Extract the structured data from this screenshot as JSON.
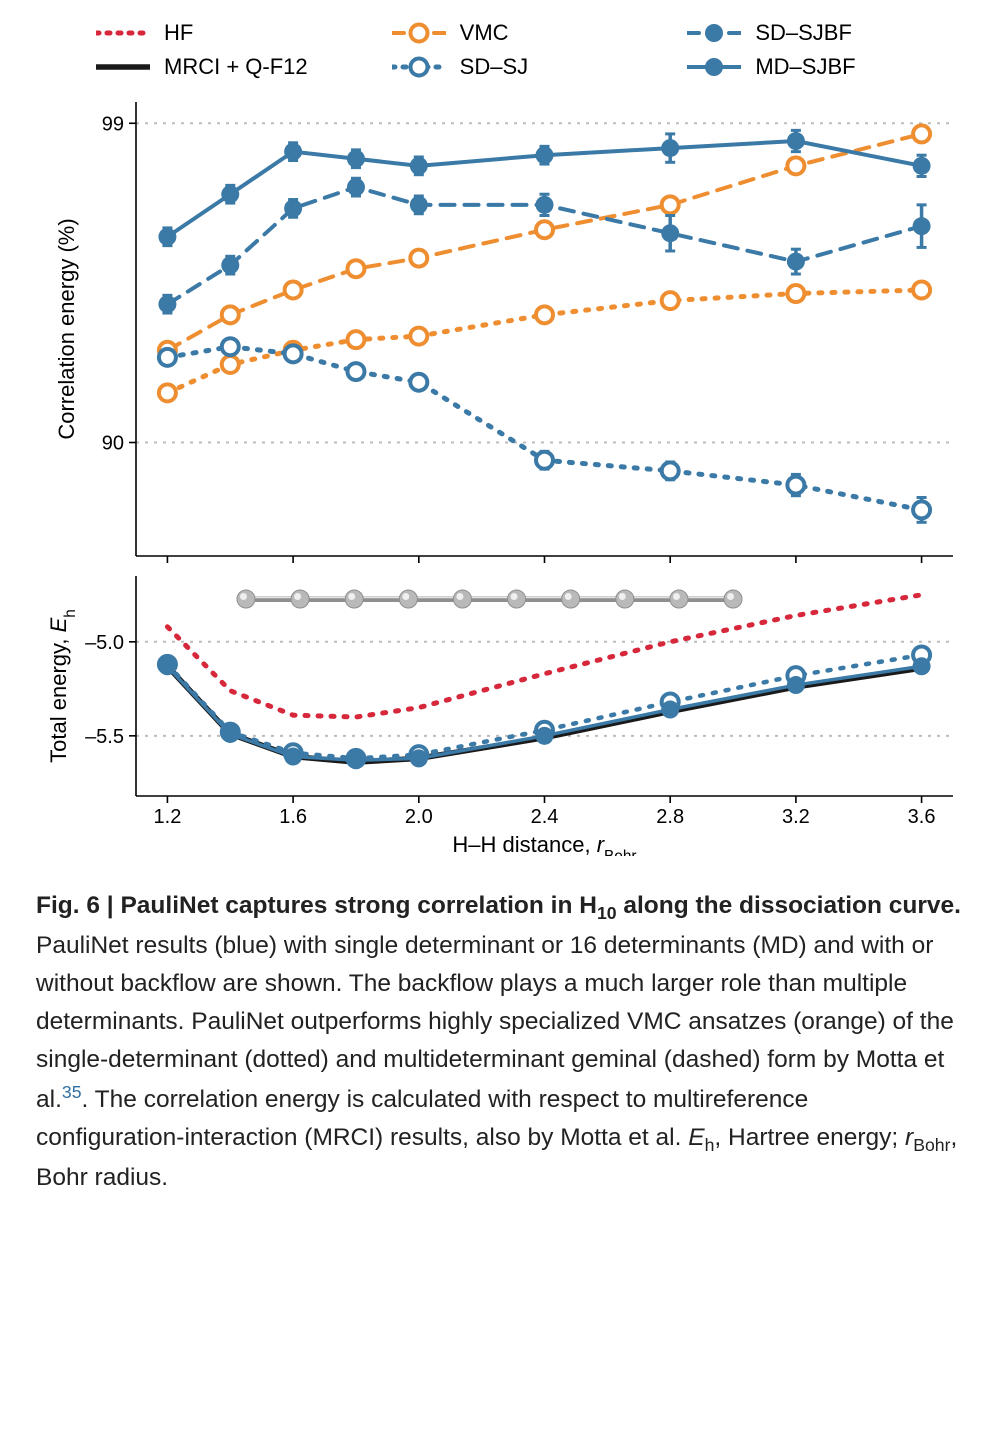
{
  "colors": {
    "blue": "#3b79a6",
    "orange": "#ee8e31",
    "red": "#d6273b",
    "black": "#1a1a1a",
    "axis": "#000000",
    "grid": "#bcbcbc",
    "tick_text": "#000000",
    "bg": "#ffffff",
    "molecule_gray": "#b9b9b9",
    "molecule_dark": "#8f8f8f"
  },
  "typography": {
    "tick_fontsize": 20,
    "axis_label_fontsize": 22,
    "legend_fontsize": 22,
    "caption_fontsize": 24.5
  },
  "legend": [
    {
      "key": "HF",
      "label": "HF",
      "color": "#d6273b",
      "style": "dotted",
      "marker": "none",
      "lw": 5
    },
    {
      "key": "VMC",
      "label": "VMC",
      "color": "#ee8e31",
      "style": "dashed",
      "marker": "open-circle",
      "lw": 4
    },
    {
      "key": "SD-SJBF",
      "label": "SD–SJBF",
      "color": "#3b79a6",
      "style": "dashed",
      "marker": "solid-circle",
      "lw": 4
    },
    {
      "key": "MRCI",
      "label": "MRCI + Q-F12",
      "color": "#1a1a1a",
      "style": "solid",
      "marker": "none",
      "lw": 5.5
    },
    {
      "key": "SD-SJ",
      "label": "SD–SJ",
      "color": "#3b79a6",
      "style": "dotted",
      "marker": "open-circle",
      "lw": 5
    },
    {
      "key": "MD-SJBF",
      "label": "MD–SJBF",
      "color": "#3b79a6",
      "style": "solid",
      "marker": "solid-circle",
      "lw": 4
    }
  ],
  "x": {
    "ticks": [
      1.2,
      1.6,
      2.0,
      2.4,
      2.8,
      3.2,
      3.6
    ],
    "data": [
      1.2,
      1.4,
      1.6,
      1.8,
      2.0,
      2.4,
      2.8,
      3.2,
      3.6
    ],
    "min": 1.1,
    "max": 3.7,
    "label": "H–H distance, r",
    "label_sub": "Bohr"
  },
  "top": {
    "ylabel": "Correlation energy (%)",
    "ylim": [
      86.8,
      99.6
    ],
    "yticks": [
      90,
      99
    ],
    "series": {
      "VMC_dotted": {
        "color": "#ee8e31",
        "style": "dotted",
        "marker": "open-circle",
        "y": [
          91.4,
          92.2,
          92.6,
          92.9,
          93.0,
          93.6,
          94.0,
          94.2,
          94.3
        ]
      },
      "VMC_dashed": {
        "color": "#ee8e31",
        "style": "dashed",
        "marker": "open-circle",
        "y": [
          92.6,
          93.6,
          94.3,
          94.9,
          95.2,
          96.0,
          96.7,
          97.8,
          98.7
        ]
      },
      "SD_SJ": {
        "color": "#3b79a6",
        "style": "dotted",
        "marker": "open-circle",
        "y": [
          92.4,
          92.7,
          92.5,
          92.0,
          91.7,
          89.5,
          89.2,
          88.8,
          88.1
        ],
        "err": [
          0.2,
          0.2,
          0.2,
          0.2,
          0.2,
          0.25,
          0.25,
          0.3,
          0.35
        ]
      },
      "SD_SJBF": {
        "color": "#3b79a6",
        "style": "dashed",
        "marker": "solid-circle",
        "y": [
          93.9,
          95.0,
          96.6,
          97.2,
          96.7,
          96.7,
          95.9,
          95.1,
          96.1
        ],
        "err": [
          0.25,
          0.25,
          0.25,
          0.25,
          0.25,
          0.3,
          0.5,
          0.35,
          0.6
        ]
      },
      "MD_SJBF": {
        "color": "#3b79a6",
        "style": "solid",
        "marker": "solid-circle",
        "y": [
          95.8,
          97.0,
          98.2,
          98.0,
          97.8,
          98.1,
          98.3,
          98.5,
          97.8
        ],
        "err": [
          0.25,
          0.25,
          0.25,
          0.25,
          0.25,
          0.25,
          0.4,
          0.3,
          0.3
        ]
      }
    }
  },
  "bottom": {
    "ylabel": "Total energy, E",
    "ylabel_sub": "h",
    "ylim": [
      -5.82,
      -4.65
    ],
    "yticks": [
      -5.5,
      -5.0
    ],
    "series": {
      "HF": {
        "color": "#d6273b",
        "style": "dotted",
        "marker": "none",
        "lw": 5,
        "y": [
          -4.92,
          -5.26,
          -5.39,
          -5.4,
          -5.35,
          -5.17,
          -5.0,
          -4.86,
          -4.75
        ]
      },
      "MRCI": {
        "color": "#1a1a1a",
        "style": "solid",
        "marker": "none",
        "lw": 5.5,
        "y": [
          -5.13,
          -5.49,
          -5.61,
          -5.64,
          -5.62,
          -5.51,
          -5.37,
          -5.24,
          -5.14
        ]
      },
      "SD_SJ_b": {
        "color": "#3b79a6",
        "style": "dotted",
        "marker": "open-circle",
        "lw": 4.5,
        "y": [
          -5.12,
          -5.48,
          -5.59,
          -5.62,
          -5.6,
          -5.47,
          -5.32,
          -5.18,
          -5.07
        ]
      },
      "MD_SJBF_b": {
        "color": "#3b79a6",
        "style": "solid",
        "marker": "solid-circle",
        "lw": 3.5,
        "y": [
          -5.13,
          -5.49,
          -5.61,
          -5.63,
          -5.62,
          -5.5,
          -5.36,
          -5.23,
          -5.13
        ]
      }
    }
  },
  "caption": {
    "fignum": "Fig. 6",
    "title_bold": "PauliNet captures strong correlation in H",
    "title_sub": "10",
    "title_bold_tail": " along the dissociation curve.",
    "body1": " PauliNet results (blue) with single determinant or 16 determinants (MD) and with or without backflow are shown. The backflow plays a much larger role than multiple determinants. PauliNet outperforms highly specialized VMC ansatzes (orange) of the single-determinant (dotted) and multideterminant geminal (dashed) form by Motta et al.",
    "ref": "35",
    "body2": ". The correlation energy is calculated with respect to multireference configuration-interaction (MRCI) results, also by Motta et al. ",
    "eh": "E",
    "eh_sub": "h",
    "body3": ", Hartree energy; ",
    "rbohr": "r",
    "rbohr_sub": "Bohr",
    "body4": ", Bohr radius."
  }
}
